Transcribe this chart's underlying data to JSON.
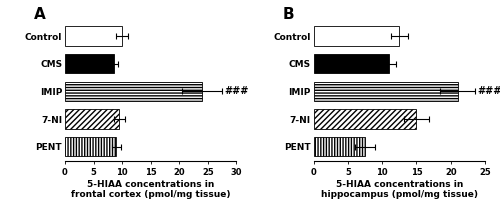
{
  "panel_A": {
    "title": "A",
    "categories": [
      "Control",
      "CMS",
      "IMIP",
      "7-NI",
      "PENT"
    ],
    "values": [
      10.0,
      8.5,
      24.0,
      9.5,
      9.0
    ],
    "errors": [
      1.0,
      0.8,
      3.5,
      1.0,
      0.8
    ],
    "xlabel_line1": "5-HIAA concentrations in",
    "xlabel_line2": "frontal cortex (pmol/mg tissue)",
    "xlim": [
      0,
      30
    ],
    "xticks": [
      0,
      5,
      10,
      15,
      20,
      25,
      30
    ],
    "significance": {
      "bar": "IMIP",
      "label": "###"
    }
  },
  "panel_B": {
    "title": "B",
    "categories": [
      "Control",
      "CMS",
      "IMIP",
      "7-NI",
      "PENT"
    ],
    "values": [
      12.5,
      11.0,
      21.0,
      15.0,
      7.5
    ],
    "errors": [
      1.2,
      1.0,
      2.5,
      1.8,
      1.5
    ],
    "xlabel_line1": "5-HIAA concentrations in",
    "xlabel_line2": "hippocampus (pmol/mg tissue)",
    "xlim": [
      0,
      25
    ],
    "xticks": [
      0,
      5,
      10,
      15,
      20,
      25
    ],
    "significance": {
      "bar": "IMIP",
      "label": "###"
    }
  },
  "bar_styles": {
    "Control": {
      "facecolor": "white",
      "hatch": "",
      "edgecolor": "black"
    },
    "CMS": {
      "facecolor": "black",
      "hatch": "",
      "edgecolor": "black"
    },
    "IMIP": {
      "facecolor": "white",
      "hatch": "------",
      "edgecolor": "black"
    },
    "7-NI": {
      "facecolor": "white",
      "hatch": "//////",
      "edgecolor": "black"
    },
    "PENT": {
      "facecolor": "white",
      "hatch": "||||||",
      "edgecolor": "black"
    }
  },
  "bar_height": 0.7,
  "figure_bg": "white",
  "title_fontsize": 11,
  "label_fontsize": 6.5,
  "tick_fontsize": 6,
  "xlabel_fontsize": 6.5,
  "sig_fontsize": 7
}
